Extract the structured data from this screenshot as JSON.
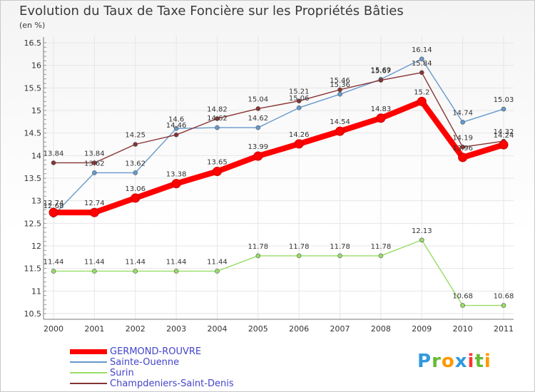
{
  "title": "Evolution du Taux de Taxe Foncière sur les Propriétés Bâties",
  "subtitle": "(en %)",
  "logo": "Proxiti",
  "chart_data": {
    "type": "line",
    "title": "Evolution du Taux de Taxe Foncière sur les Propriétés Bâties",
    "ylabel": "(en %)",
    "xlabel": "",
    "x": [
      "2000",
      "2001",
      "2002",
      "2003",
      "2004",
      "2005",
      "2006",
      "2007",
      "2008",
      "2009",
      "2010",
      "2011"
    ],
    "ylim": [
      10.5,
      16.5
    ],
    "yticks": [
      "10.5",
      "11",
      "11.5",
      "12",
      "12.5",
      "13",
      "13.5",
      "14",
      "14.5",
      "15",
      "15.5",
      "16",
      "16.5"
    ],
    "series": [
      {
        "name": "GERMOND-ROUVRE",
        "color": "#ff0000",
        "values": [
          12.74,
          12.74,
          13.06,
          13.38,
          13.65,
          13.99,
          14.26,
          14.54,
          14.83,
          15.2,
          13.96,
          14.24
        ],
        "labels": [
          "12.74",
          "12.74",
          "13.06",
          "13.38",
          "13.65",
          "13.99",
          "14.26",
          "14.54",
          "14.83",
          "15.2",
          "13.96",
          "14.24"
        ]
      },
      {
        "name": "Sainte-Ouenne",
        "color": "#6699cc",
        "values": [
          12.68,
          13.62,
          13.62,
          14.6,
          14.62,
          14.62,
          15.06,
          15.36,
          15.69,
          16.14,
          14.74,
          15.03
        ],
        "labels": [
          "12.68",
          "13.62",
          "13.62",
          "14.6",
          "14.62",
          "14.62",
          "15.06",
          "15.36",
          "15.69",
          "16.14",
          "14.74",
          "15.03"
        ]
      },
      {
        "name": "Surin",
        "color": "#99dd66",
        "values": [
          11.44,
          11.44,
          11.44,
          11.44,
          11.44,
          11.78,
          11.78,
          11.78,
          11.78,
          12.13,
          10.68,
          10.68
        ],
        "labels": [
          "11.44",
          "11.44",
          "11.44",
          "11.44",
          "11.44",
          "11.78",
          "11.78",
          "11.78",
          "11.78",
          "12.13",
          "10.68",
          "10.68"
        ]
      },
      {
        "name": "Champdeniers-Saint-Denis",
        "color": "#883333",
        "values": [
          13.84,
          13.84,
          14.25,
          14.46,
          14.82,
          15.04,
          15.21,
          15.46,
          15.67,
          15.84,
          14.19,
          14.32
        ],
        "labels": [
          "13.84",
          "13.84",
          "14.25",
          "14.46",
          "14.82",
          "15.04",
          "15.21",
          "15.46",
          "15.67",
          "15.84",
          "14.19",
          "14.32"
        ]
      }
    ]
  }
}
